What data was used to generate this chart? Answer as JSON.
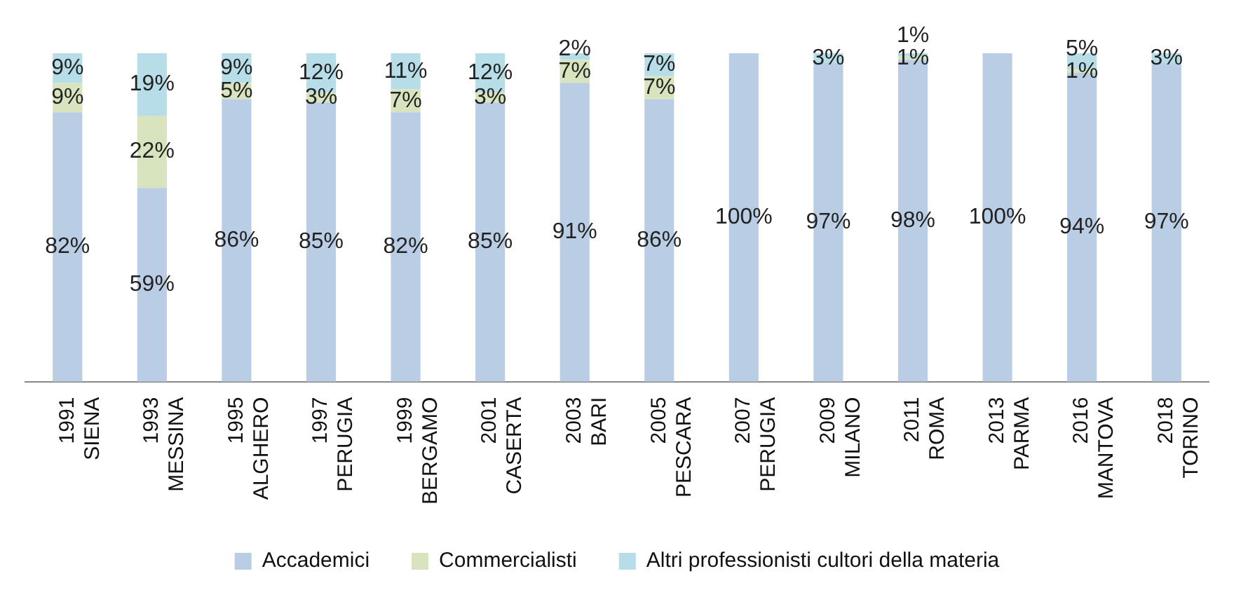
{
  "chart_data": {
    "type": "bar",
    "stacked": true,
    "legend": "bottom",
    "grid": false,
    "categories": [
      "1991 SIENA",
      "1993 MESSINA",
      "1995 ALGHERO",
      "1997 PERUGIA",
      "1999 BERGAMO",
      "2001 CASERTA",
      "2003 BARI",
      "2005 PESCARA",
      "2007 PERUGIA",
      "2009 MILANO",
      "2011 ROMA",
      "2013 PARMA",
      "2016 MANTOVA",
      "2018 TORINO"
    ],
    "series": [
      {
        "name": "Accademici",
        "color": "#b9cde5",
        "values": [
          82,
          59,
          86,
          85,
          82,
          85,
          91,
          86,
          100,
          97,
          98,
          100,
          94,
          97
        ],
        "value_labels": [
          "82%",
          "59%",
          "86%",
          "85%",
          "82%",
          "85%",
          "91%",
          "86%",
          "100%",
          "97%",
          "98%",
          "100%",
          "94%",
          "97%"
        ]
      },
      {
        "name": "Commercialisti",
        "color": "#d7e4bd",
        "values": [
          9,
          22,
          5,
          3,
          7,
          3,
          7,
          7,
          0,
          0,
          1,
          0,
          1,
          0
        ],
        "value_labels": [
          "9%",
          "22%",
          "5%",
          "3%",
          "7%",
          "3%",
          "7%",
          "7%",
          null,
          null,
          "1%",
          null,
          "1%",
          null
        ]
      },
      {
        "name": "Altri professionisti cultori della materia",
        "color": "#b7dee8",
        "values": [
          9,
          19,
          9,
          12,
          11,
          12,
          2,
          7,
          0,
          3,
          1,
          0,
          5,
          3
        ],
        "value_labels": [
          "9%",
          "19%",
          "9%",
          "12%",
          "11%",
          "12%",
          "2%",
          "7%",
          null,
          "3%",
          "1%",
          null,
          "5%",
          "3%"
        ]
      }
    ]
  }
}
